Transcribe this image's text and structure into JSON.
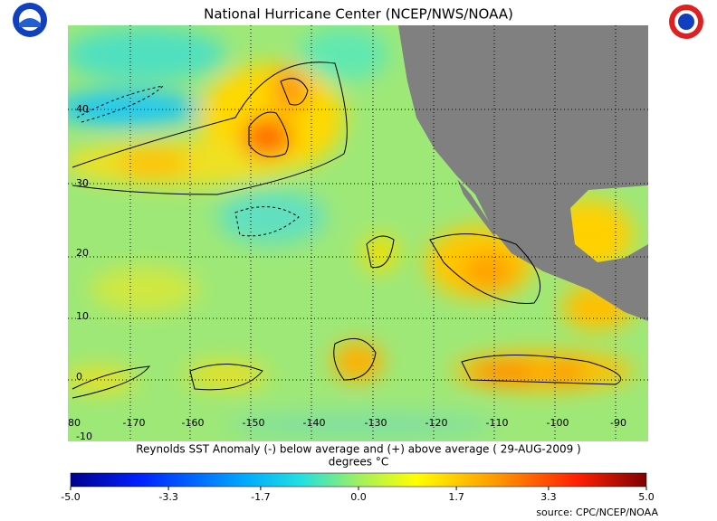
{
  "header": {
    "title": "National Hurricane Center (NCEP/NWS/NOAA)"
  },
  "map": {
    "lat_labels": [
      "40",
      "30",
      "20",
      "10",
      "0",
      "-10"
    ],
    "lon_labels": [
      "80",
      "-170",
      "-160",
      "-150",
      "-140",
      "-130",
      "-120",
      "-110",
      "-100",
      "-90"
    ]
  },
  "caption": {
    "line1": "Reynolds SST Anomaly (-) below average and (+) above average ( 29-AUG-2009 )",
    "line2": "degrees °C"
  },
  "colorbar": {
    "ticks": [
      {
        "value": -5,
        "label": "-5.0"
      },
      {
        "value": -3.3,
        "label": "-3.3"
      },
      {
        "value": -1.7,
        "label": "-1.7"
      },
      {
        "value": 0,
        "label": "0.0"
      },
      {
        "value": 1.7,
        "label": "1.7"
      },
      {
        "value": 3.3,
        "label": "3.3"
      },
      {
        "value": 5,
        "label": "5.0"
      }
    ]
  },
  "source": "source:  CPC/NCEP/NOAA"
}
